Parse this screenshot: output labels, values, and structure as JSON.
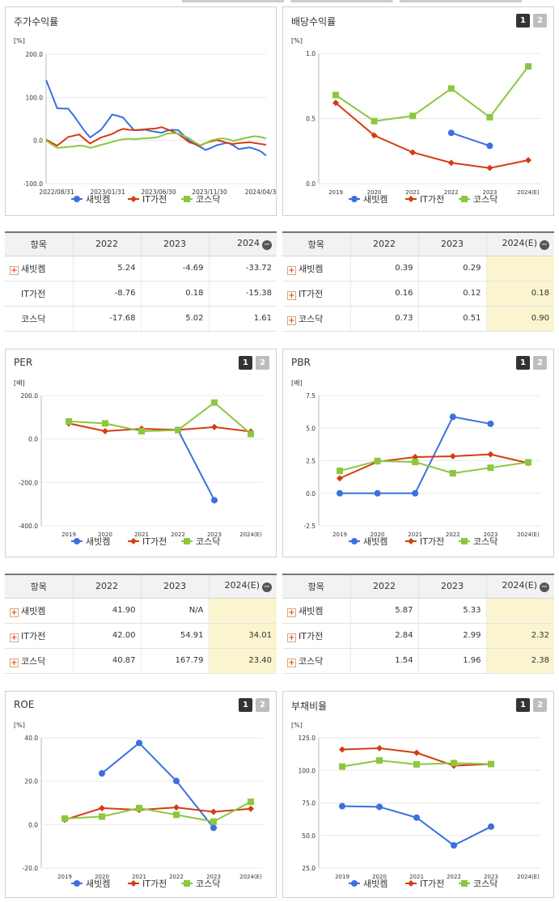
{
  "colors": {
    "s1": "#3a70e0",
    "s2": "#d43d10",
    "s3": "#8dc63f",
    "highlight": "#fbf5cf"
  },
  "pager": [
    "1",
    "2"
  ],
  "panels": {
    "stock": {
      "title": "주가수익률",
      "unit": "[%]",
      "y_ticks": [
        "200.0",
        "100.0",
        "0.0",
        "-100.0"
      ],
      "x_labels": [
        "2022/08/31",
        "2023/01/31",
        "2023/06/30",
        "2023/11/30",
        "2024/04/3"
      ]
    },
    "div": {
      "title": "배당수익률",
      "unit": "[%]",
      "y_ticks": [
        "1.0",
        "0.5",
        "0.0"
      ],
      "x_labels": [
        "2019",
        "2020",
        "2021",
        "2022",
        "2023",
        "2024(E)"
      ]
    },
    "per": {
      "title": "PER",
      "unit": "[배]",
      "y_ticks": [
        "200.0",
        "0.0",
        "-200.0",
        "-400.0"
      ],
      "x_labels": [
        "2019",
        "2020",
        "2021",
        "2022",
        "2023",
        "2024(E)"
      ]
    },
    "pbr": {
      "title": "PBR",
      "unit": "[배]",
      "y_ticks": [
        "7.5",
        "5.0",
        "2.5",
        "0.0",
        "-2.5"
      ],
      "x_labels": [
        "2019",
        "2020",
        "2021",
        "2022",
        "2023",
        "2024(E)"
      ]
    },
    "roe": {
      "title": "ROE",
      "unit": "[%]",
      "y_ticks": [
        "40.0",
        "20.0",
        "0.0",
        "-20.0"
      ],
      "x_labels": [
        "2019",
        "2020",
        "2021",
        "2022",
        "2023",
        "2024(E)"
      ]
    },
    "debt": {
      "title": "부채비율",
      "unit": "[%]",
      "y_ticks": [
        "125.0",
        "100.0",
        "75.0",
        "50.0",
        "25.0"
      ],
      "x_labels": [
        "2019",
        "2020",
        "2021",
        "2022",
        "2023",
        "2024(E)"
      ]
    }
  },
  "legend": [
    "새빗켐",
    "IT가전",
    "코스닥"
  ],
  "tables": {
    "stock": {
      "headers": [
        "항목",
        "2022",
        "2023",
        "2024"
      ],
      "rows": [
        {
          "label": "새빗켐",
          "plus": true,
          "values": [
            "5.24",
            "-4.69",
            "-33.72"
          ]
        },
        {
          "label": "IT가전",
          "plus": false,
          "values": [
            "-8.76",
            "0.18",
            "-15.38"
          ]
        },
        {
          "label": "코스닥",
          "plus": false,
          "values": [
            "-17.68",
            "5.02",
            "1.61"
          ]
        }
      ]
    },
    "div": {
      "headers": [
        "항목",
        "2022",
        "2023",
        "2024(E)"
      ],
      "rows": [
        {
          "label": "새빗켐",
          "plus": true,
          "values": [
            "0.39",
            "0.29",
            ""
          ]
        },
        {
          "label": "IT가전",
          "plus": true,
          "values": [
            "0.16",
            "0.12",
            "0.18"
          ]
        },
        {
          "label": "코스닥",
          "plus": true,
          "values": [
            "0.73",
            "0.51",
            "0.90"
          ]
        }
      ]
    },
    "per": {
      "headers": [
        "항목",
        "2022",
        "2023",
        "2024(E)"
      ],
      "rows": [
        {
          "label": "새빗켐",
          "plus": true,
          "values": [
            "41.90",
            "N/A",
            ""
          ]
        },
        {
          "label": "IT가전",
          "plus": true,
          "values": [
            "42.00",
            "54.91",
            "34.01"
          ]
        },
        {
          "label": "코스닥",
          "plus": true,
          "values": [
            "40.87",
            "167.79",
            "23.40"
          ]
        }
      ]
    },
    "pbr": {
      "headers": [
        "항목",
        "2022",
        "2023",
        "2024(E)"
      ],
      "rows": [
        {
          "label": "새빗켐",
          "plus": true,
          "values": [
            "5.87",
            "5.33",
            ""
          ]
        },
        {
          "label": "IT가전",
          "plus": true,
          "values": [
            "2.84",
            "2.99",
            "2.32"
          ]
        },
        {
          "label": "코스닥",
          "plus": true,
          "values": [
            "1.54",
            "1.96",
            "2.38"
          ]
        }
      ]
    }
  },
  "chart_data": [
    {
      "id": "stock",
      "type": "line",
      "title": "주가수익률",
      "ylabel": "[%]",
      "ylim": [
        -100,
        200
      ],
      "x": [
        "2022/08/31",
        "2022/09/15",
        "2022/09/30",
        "2022/10/15",
        "2022/10/31",
        "2022/11/15",
        "2022/11/30",
        "2022/12/15",
        "2022/12/31",
        "2023/01/15",
        "2023/01/31",
        "2023/02/15",
        "2023/02/28",
        "2023/03/15",
        "2023/03/31",
        "2023/04/15",
        "2023/04/30",
        "2023/05/15",
        "2023/05/31",
        "2023/06/15",
        "2023/06/30",
        "2023/07/15",
        "2023/07/31",
        "2023/08/15",
        "2023/08/31",
        "2023/09/15",
        "2023/09/30",
        "2023/10/15",
        "2023/10/31",
        "2023/11/15",
        "2023/11/30",
        "2023/12/15",
        "2023/12/31",
        "2024/01/15",
        "2024/01/31",
        "2024/02/15",
        "2024/02/29",
        "2024/03/15",
        "2024/03/31",
        "2024/04/15",
        "2024/04/30"
      ],
      "series": [
        {
          "name": "새빗켐",
          "values": [
            140,
            108,
            75,
            74,
            74,
            58,
            40,
            22,
            7,
            16,
            25,
            42,
            60,
            57,
            53,
            38,
            24,
            24,
            25,
            22,
            20,
            18,
            23,
            25,
            24,
            12,
            0,
            -8,
            -15,
            -22,
            -17,
            -11,
            -8,
            -5,
            -11,
            -20,
            -18,
            -16,
            -20,
            -25,
            -35
          ]
        },
        {
          "name": "IT가전",
          "values": [
            2,
            -5,
            -12,
            -2,
            8,
            11,
            14,
            3,
            -7,
            0,
            7,
            11,
            15,
            22,
            27,
            25,
            24,
            25,
            26,
            27,
            28,
            31,
            26,
            21,
            15,
            6,
            -4,
            -8,
            -12,
            -6,
            -2,
            1,
            -2,
            -6,
            -8,
            -6,
            -5,
            -4,
            -6,
            -8,
            -10
          ]
        },
        {
          "name": "코스닥",
          "values": [
            0,
            -9,
            -17,
            -16,
            -15,
            -14,
            -12,
            -13,
            -17,
            -14,
            -10,
            -7,
            -3,
            0,
            3,
            4,
            3,
            4,
            5,
            6,
            7,
            11,
            16,
            17,
            16,
            11,
            5,
            -4,
            -11,
            -6,
            0,
            3,
            5,
            3,
            -1,
            2,
            5,
            8,
            10,
            8,
            5
          ]
        }
      ]
    },
    {
      "id": "div",
      "type": "line",
      "title": "배당수익률",
      "ylabel": "[%]",
      "ylim": [
        0,
        1
      ],
      "x": [
        "2019",
        "2020",
        "2021",
        "2022",
        "2023",
        "2024(E)"
      ],
      "series": [
        {
          "name": "새빗켐",
          "values": [
            null,
            null,
            null,
            0.39,
            0.29,
            null
          ]
        },
        {
          "name": "IT가전",
          "values": [
            0.62,
            0.37,
            0.24,
            0.16,
            0.12,
            0.18
          ]
        },
        {
          "name": "코스닥",
          "values": [
            0.68,
            0.48,
            0.52,
            0.73,
            0.51,
            0.9
          ]
        }
      ]
    },
    {
      "id": "per",
      "type": "line",
      "title": "PER",
      "ylabel": "[배]",
      "ylim": [
        -400,
        200
      ],
      "x": [
        "2019",
        "2020",
        "2021",
        "2022",
        "2023",
        "2024(E)"
      ],
      "series": [
        {
          "name": "새빗켐",
          "values": [
            null,
            null,
            null,
            41.9,
            -282,
            null
          ]
        },
        {
          "name": "IT가전",
          "values": [
            72,
            36,
            47,
            42.0,
            54.91,
            34.01
          ]
        },
        {
          "name": "코스닥",
          "values": [
            81,
            72,
            36,
            40.87,
            167.79,
            23.4
          ]
        }
      ]
    },
    {
      "id": "pbr",
      "type": "line",
      "title": "PBR",
      "ylabel": "[배]",
      "ylim": [
        -2.5,
        7.5
      ],
      "x": [
        "2019",
        "2020",
        "2021",
        "2022",
        "2023",
        "2024(E)"
      ],
      "series": [
        {
          "name": "새빗켐",
          "values": [
            0,
            0,
            0,
            5.87,
            5.33,
            null
          ]
        },
        {
          "name": "IT가전",
          "values": [
            1.15,
            2.42,
            2.78,
            2.84,
            2.99,
            2.32
          ]
        },
        {
          "name": "코스닥",
          "values": [
            1.72,
            2.48,
            2.4,
            1.54,
            1.96,
            2.38
          ]
        }
      ]
    },
    {
      "id": "roe",
      "type": "line",
      "title": "ROE",
      "ylabel": "[%]",
      "ylim": [
        -20,
        40
      ],
      "x": [
        "2019",
        "2020",
        "2021",
        "2022",
        "2023",
        "2024(E)"
      ],
      "series": [
        {
          "name": "새빗켐",
          "values": [
            null,
            23.6,
            37.6,
            20.1,
            -1.5,
            null
          ]
        },
        {
          "name": "IT가전",
          "values": [
            2.2,
            7.6,
            6.8,
            7.9,
            5.9,
            7.3
          ]
        },
        {
          "name": "코스닥",
          "values": [
            2.8,
            3.7,
            7.6,
            4.5,
            1.4,
            10.5
          ]
        }
      ]
    },
    {
      "id": "debt",
      "type": "line",
      "title": "부채비율",
      "ylabel": "[%]",
      "ylim": [
        25,
        125
      ],
      "x": [
        "2019",
        "2020",
        "2021",
        "2022",
        "2023",
        "2024(E)"
      ],
      "series": [
        {
          "name": "새빗켐",
          "values": [
            72.5,
            72.0,
            63.7,
            42.4,
            56.8,
            null
          ]
        },
        {
          "name": "IT가전",
          "values": [
            116.0,
            117.0,
            113.5,
            103.6,
            104.8,
            null
          ]
        },
        {
          "name": "코스닥",
          "values": [
            102.9,
            107.6,
            104.6,
            105.6,
            104.8,
            null
          ]
        }
      ]
    }
  ]
}
